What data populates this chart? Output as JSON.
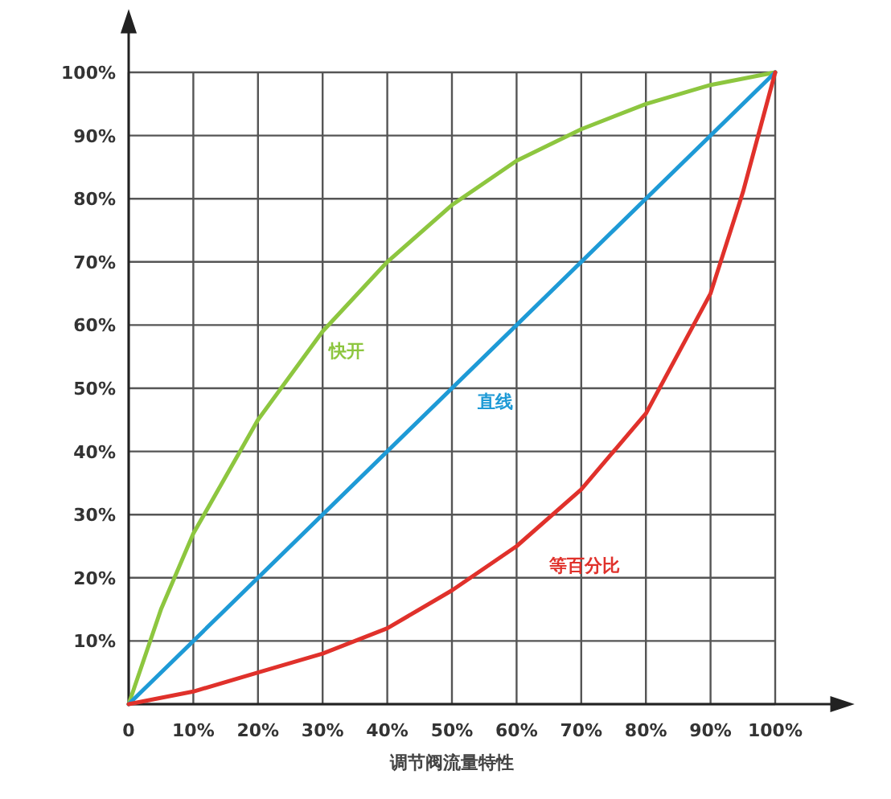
{
  "chart_data": {
    "type": "line",
    "xlabel": "调节阀流量特性",
    "series": [
      {
        "name": "快开",
        "color": "#8dc63f",
        "x": [
          0,
          5,
          10,
          20,
          30,
          40,
          50,
          60,
          70,
          80,
          90,
          100
        ],
        "values": [
          0,
          15,
          27,
          45,
          59,
          70,
          79,
          86,
          91,
          95,
          98,
          100
        ]
      },
      {
        "name": "直线",
        "color": "#1e9ad6",
        "x": [
          0,
          100
        ],
        "values": [
          0,
          100
        ]
      },
      {
        "name": "等百分比",
        "color": "#e0312b",
        "x": [
          0,
          10,
          20,
          30,
          40,
          50,
          60,
          70,
          80,
          90,
          95,
          100
        ],
        "values": [
          0,
          2,
          5,
          8,
          12,
          18,
          25,
          34,
          46,
          65,
          81,
          100
        ]
      }
    ],
    "xlim": [
      0,
      100
    ],
    "ylim": [
      0,
      100
    ],
    "xticks": [
      {
        "value": 0,
        "label": "0"
      },
      {
        "value": 10,
        "label": "10%"
      },
      {
        "value": 20,
        "label": "20%"
      },
      {
        "value": 30,
        "label": "30%"
      },
      {
        "value": 40,
        "label": "40%"
      },
      {
        "value": 50,
        "label": "50%"
      },
      {
        "value": 60,
        "label": "60%"
      },
      {
        "value": 70,
        "label": "70%"
      },
      {
        "value": 80,
        "label": "80%"
      },
      {
        "value": 90,
        "label": "90%"
      },
      {
        "value": 100,
        "label": "100%"
      }
    ],
    "yticks": [
      {
        "value": 0,
        "label": null
      },
      {
        "value": 10,
        "label": "10%"
      },
      {
        "value": 20,
        "label": "20%"
      },
      {
        "value": 30,
        "label": "30%"
      },
      {
        "value": 40,
        "label": "40%"
      },
      {
        "value": 50,
        "label": "50%"
      },
      {
        "value": 60,
        "label": "60%"
      },
      {
        "value": 70,
        "label": "70%"
      },
      {
        "value": 80,
        "label": "80%"
      },
      {
        "value": 90,
        "label": "90%"
      },
      {
        "value": 100,
        "label": "100%"
      }
    ],
    "grid": true,
    "legend": false,
    "marker": "none",
    "line_style": "solid"
  }
}
